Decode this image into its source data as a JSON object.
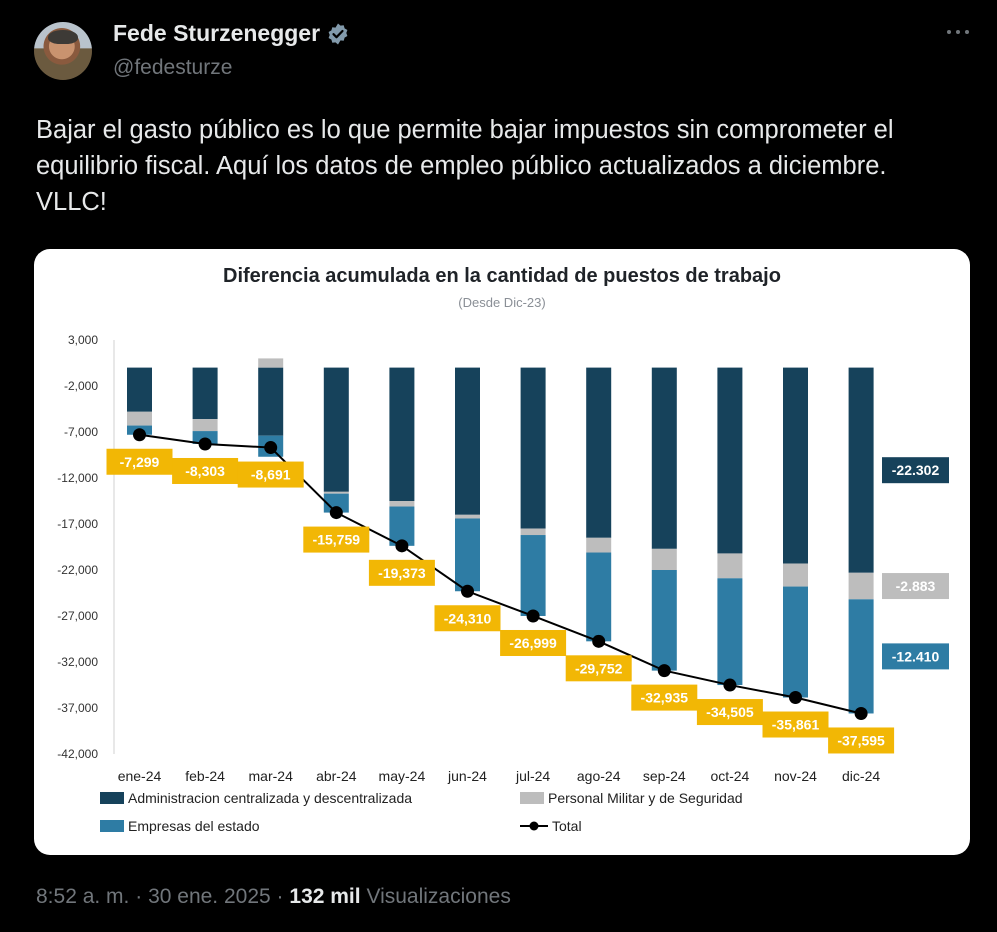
{
  "author": {
    "name": "Fede Sturzenegger",
    "handle": "@fedesturze"
  },
  "tweet": {
    "text": "Bajar el gasto público es lo que permite bajar impuestos sin comprometer el equilibrio fiscal. Aquí los datos de empleo público actualizados a diciembre. VLLC!"
  },
  "meta": {
    "time": "8:52 a. m.",
    "sep1": "·",
    "date": "30 ene. 2025",
    "sep2": "·",
    "views": "132 mil",
    "views_label": "Visualizaciones"
  },
  "colors": {
    "admin": "#16425b",
    "military": "#bdbdbd",
    "empresas": "#2e7ca4",
    "total": "#000000",
    "total_label": "#f2b705"
  },
  "chart_data": {
    "type": "bar",
    "title": "Diferencia acumulada en la cantidad de puestos de trabajo",
    "subtitle": "(Desde Dic-23)",
    "categories": [
      "ene-24",
      "feb-24",
      "mar-24",
      "abr-24",
      "may-24",
      "jun-24",
      "jul-24",
      "ago-24",
      "sep-24",
      "oct-24",
      "nov-24",
      "dic-24"
    ],
    "ylim": [
      -42000,
      3000
    ],
    "yticks": [
      3000,
      -2000,
      -7000,
      -12000,
      -17000,
      -22000,
      -27000,
      -32000,
      -37000,
      -42000
    ],
    "ytick_labels": [
      "3,000",
      "-2,000",
      "-7,000",
      "-12,000",
      "-17,000",
      "-22,000",
      "-27,000",
      "-32,000",
      "-37,000",
      "-42,000"
    ],
    "stacked": true,
    "series": [
      {
        "name": "Administracion centralizada y descentralizada",
        "color": "#16425b",
        "values": [
          -4800,
          -5600,
          -7400,
          -13500,
          -14500,
          -16000,
          -17500,
          -18500,
          -19700,
          -20200,
          -21300,
          -22302
        ]
      },
      {
        "name": "Personal Militar y de Seguridad",
        "color": "#bdbdbd",
        "values": [
          -1500,
          -1300,
          1000,
          -200,
          -600,
          -400,
          -700,
          -1600,
          -2300,
          -2700,
          -2500,
          -2883
        ]
      },
      {
        "name": "Empresas del estado",
        "color": "#2e7ca4",
        "values": [
          -1000,
          -1400,
          -2291,
          -2059,
          -4273,
          -7910,
          -8799,
          -9652,
          -10935,
          -11605,
          -12061,
          -12410
        ]
      },
      {
        "name": "Total",
        "type": "line",
        "color": "#000000",
        "values": [
          -7299,
          -8303,
          -8691,
          -15759,
          -19373,
          -24310,
          -26999,
          -29752,
          -32935,
          -34505,
          -35861,
          -37595
        ]
      }
    ],
    "total_labels": [
      "-7,299",
      "-8,303",
      "-8,691",
      "-15,759",
      "-19,373",
      "-24,310",
      "-26,999",
      "-29,752",
      "-32,935",
      "-34,505",
      "-35,861",
      "-37,595"
    ],
    "end_labels": [
      {
        "text": "-22.302",
        "series": "Administracion centralizada y descentralizada"
      },
      {
        "text": "-2.883",
        "series": "Personal Militar y de Seguridad"
      },
      {
        "text": "-12.410",
        "series": "Empresas del estado"
      }
    ],
    "legend": [
      {
        "label": "Administracion centralizada y descentralizada",
        "kind": "box",
        "color": "#16425b"
      },
      {
        "label": "Personal Militar y de Seguridad",
        "kind": "box",
        "color": "#bdbdbd"
      },
      {
        "label": "Empresas del estado",
        "kind": "box",
        "color": "#2e7ca4"
      },
      {
        "label": "Total",
        "kind": "line",
        "color": "#000000"
      }
    ],
    "legend_position": "bottom",
    "grid": false
  }
}
